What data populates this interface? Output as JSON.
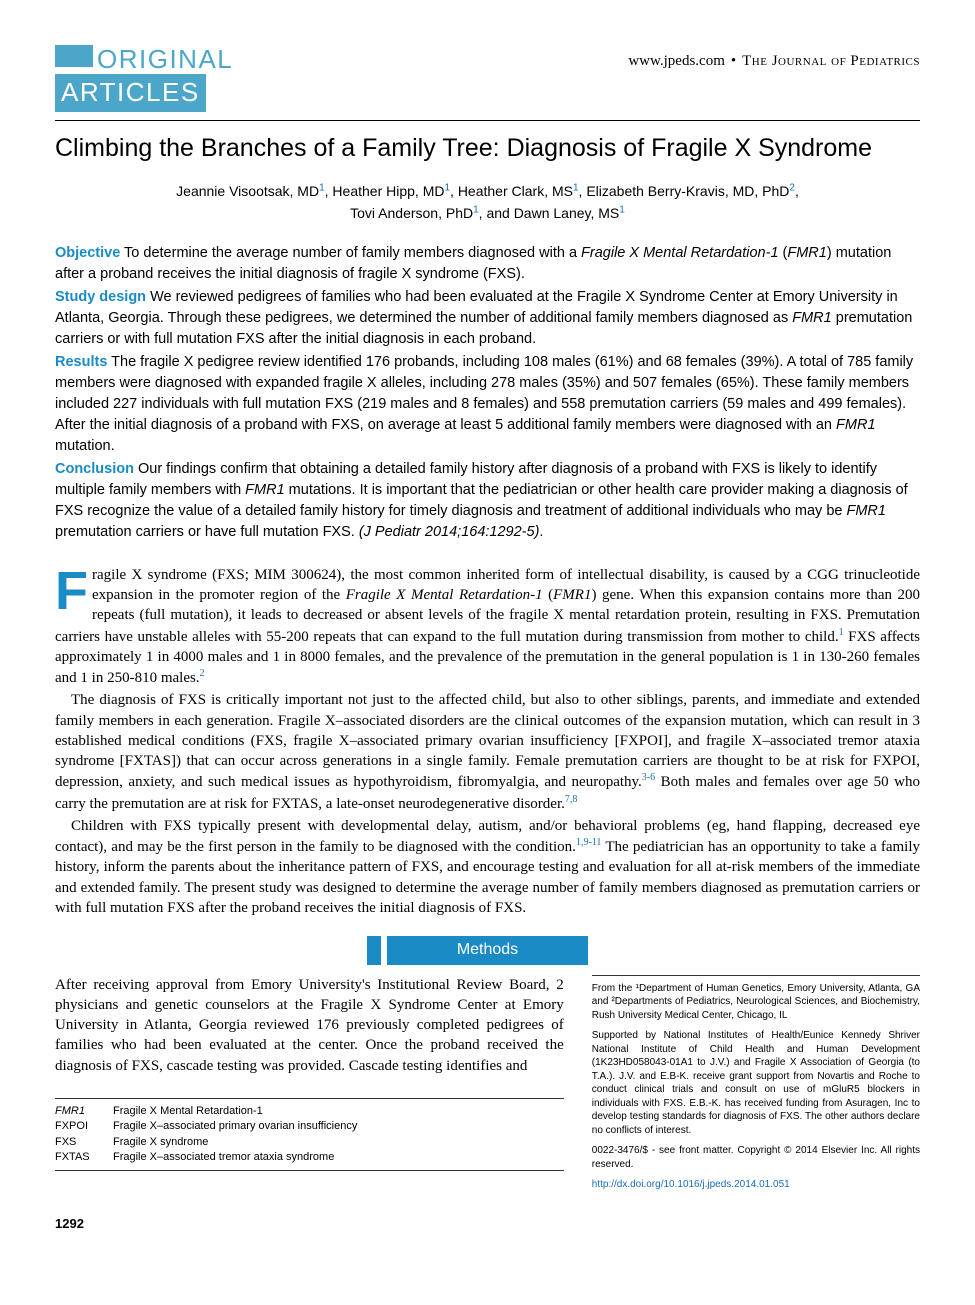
{
  "colors": {
    "accent_light": "#4ba6c9",
    "accent": "#1a8bc4",
    "link": "#1a6db5",
    "text": "#000000",
    "bg": "#ffffff"
  },
  "header": {
    "section_label_line1": "ORIGINAL",
    "section_label_line2": "ARTICLES",
    "website": "www.jpeds.com",
    "journal_name": "The Journal of Pediatrics"
  },
  "article": {
    "title": "Climbing the Branches of a Family Tree: Diagnosis of Fragile X Syndrome",
    "authors_line1": "Jeannie Visootsak, MD¹, Heather Hipp, MD¹, Heather Clark, MS¹, Elizabeth Berry-Kravis, MD, PhD²,",
    "authors_line2": "Tovi Anderson, PhD¹, and Dawn Laney, MS¹"
  },
  "abstract": {
    "objective_label": "Objective",
    "objective_text": " To determine the average number of family members diagnosed with a Fragile X Mental Retardation-1 (FMR1) mutation after a proband receives the initial diagnosis of fragile X syndrome (FXS).",
    "design_label": "Study design",
    "design_text": " We reviewed pedigrees of families who had been evaluated at the Fragile X Syndrome Center at Emory University in Atlanta, Georgia. Through these pedigrees, we determined the number of additional family members diagnosed as FMR1 premutation carriers or with full mutation FXS after the initial diagnosis in each proband.",
    "results_label": "Results",
    "results_text": " The fragile X pedigree review identified 176 probands, including 108 males (61%) and 68 females (39%). A total of 785 family members were diagnosed with expanded fragile X alleles, including 278 males (35%) and 507 females (65%). These family members included 227 individuals with full mutation FXS (219 males and 8 females) and 558 premutation carriers (59 males and 499 females). After the initial diagnosis of a proband with FXS, on average at least 5 additional family members were diagnosed with an FMR1 mutation.",
    "conclusion_label": "Conclusion",
    "conclusion_text": " Our findings confirm that obtaining a detailed family history after diagnosis of a proband with FXS is likely to identify multiple family members with FMR1 mutations. It is important that the pediatrician or other health care provider making a diagnosis of FXS recognize the value of a detailed family history for timely diagnosis and treatment of additional individuals who may be FMR1 premutation carriers or have full mutation FXS. (J Pediatr 2014;164:1292-5)."
  },
  "body": {
    "dropcap": "F",
    "para1": "ragile X syndrome (FXS; MIM 300624), the most common inherited form of intellectual disability, is caused by a CGG trinucleotide expansion in the promoter region of the Fragile X Mental Retardation-1 (FMR1) gene. When this expansion contains more than 200 repeats (full mutation), it leads to decreased or absent levels of the fragile X mental retardation protein, resulting in FXS. Premutation carriers have unstable alleles with 55-200 repeats that can expand to the full mutation during transmission from mother to child.¹ FXS affects approximately 1 in 4000 males and 1 in 8000 females, and the prevalence of the premutation in the general population is 1 in 130-260 females and 1 in 250-810 males.²",
    "para2": "The diagnosis of FXS is critically important not just to the affected child, but also to other siblings, parents, and immediate and extended family members in each generation. Fragile X–associated disorders are the clinical outcomes of the expansion mutation, which can result in 3 established medical conditions (FXS, fragile X–associated primary ovarian insufficiency [FXPOI], and fragile X–associated tremor ataxia syndrome [FXTAS]) that can occur across generations in a single family. Female premutation carriers are thought to be at risk for FXPOI, depression, anxiety, and such medical issues as hypothyroidism, fibromyalgia, and neuropathy.³⁻⁶ Both males and females over age 50 who carry the premutation are at risk for FXTAS, a late-onset neurodegenerative disorder.⁷,⁸",
    "para3": "Children with FXS typically present with developmental delay, autism, and/or behavioral problems (eg, hand flapping, decreased eye contact), and may be the first person in the family to be diagnosed with the condition.¹,⁹⁻¹¹ The pediatrician has an opportunity to take a family history, inform the parents about the inheritance pattern of FXS, and encourage testing and evaluation for all at-risk members of the immediate and extended family. The present study was designed to determine the average number of family members diagnosed as premutation carriers or with full mutation FXS after the proband receives the initial diagnosis of FXS."
  },
  "methods": {
    "heading": "Methods",
    "para1": "After receiving approval from Emory University's Institutional Review Board, 2 physicians and genetic counselors at the Fragile X Syndrome Center at Emory University in Atlanta, Georgia reviewed 176 previously completed pedigrees of families who had been evaluated at the center. Once the proband received the diagnosis of FXS, cascade testing was provided. Cascade testing identifies and"
  },
  "abbreviations": [
    {
      "key": "FMR1",
      "val": "Fragile X Mental Retardation-1",
      "italic": true
    },
    {
      "key": "FXPOI",
      "val": "Fragile X–associated primary ovarian insufficiency",
      "italic": false
    },
    {
      "key": "FXS",
      "val": "Fragile X syndrome",
      "italic": false
    },
    {
      "key": "FXTAS",
      "val": "Fragile X–associated tremor ataxia syndrome",
      "italic": false
    }
  ],
  "footer_info": {
    "affiliations": "From the ¹Department of Human Genetics, Emory University, Atlanta, GA and ²Departments of Pediatrics, Neurological Sciences, and Biochemistry, Rush University Medical Center, Chicago, IL",
    "funding": "Supported by National Institutes of Health/Eunice Kennedy Shriver National Institute of Child Health and Human Development (1K23HD058043-01A1 to J.V.) and Fragile X Association of Georgia (to T.A.). J.V. and E.B-K. receive grant support from Novartis and Roche to conduct clinical trials and consult on use of mGluR5 blockers in individuals with FXS. E.B.-K. has received funding from Asuragen, Inc to develop testing standards for diagnosis of FXS. The other authors declare no conflicts of interest.",
    "copyright": "0022-3476/$ - see front matter. Copyright © 2014 Elsevier Inc. All rights reserved.",
    "doi": "http://dx.doi.org/10.1016/j.jpeds.2014.01.051"
  },
  "page_number": "1292"
}
